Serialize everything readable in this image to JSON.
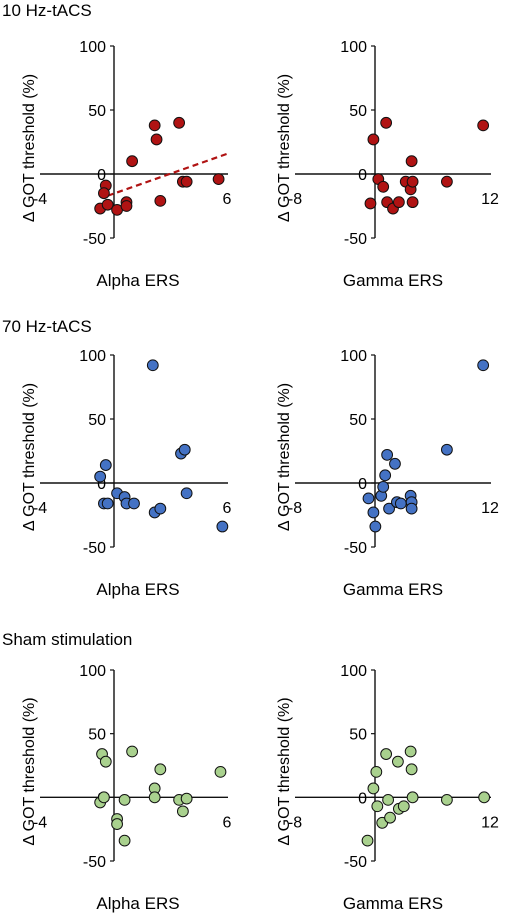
{
  "chart_data": [
    {
      "type": "scatter",
      "section": "10 Hz-tACS",
      "xlabel": "Alpha ERS",
      "ylabel": "Δ GOT threshold (%)",
      "xlim": [
        -4,
        6
      ],
      "ylim": [
        -50,
        100
      ],
      "xticks": [
        -4,
        6
      ],
      "yticks": [
        -50,
        0,
        50,
        100
      ],
      "color": "#b01313",
      "points": [
        [
          -0.8,
          -27
        ],
        [
          -0.5,
          -9
        ],
        [
          -0.6,
          -15
        ],
        [
          -0.4,
          -24
        ],
        [
          0.1,
          -28
        ],
        [
          0.6,
          -22
        ],
        [
          0.6,
          -25
        ],
        [
          0.9,
          10
        ],
        [
          2.1,
          38
        ],
        [
          2.2,
          27
        ],
        [
          2.4,
          -21
        ],
        [
          3.4,
          40
        ],
        [
          3.6,
          -6
        ],
        [
          3.8,
          -6
        ],
        [
          5.5,
          -4
        ]
      ],
      "trendline": [
        [
          -0.4,
          -17
        ],
        [
          6,
          16
        ]
      ]
    },
    {
      "type": "scatter",
      "section": "",
      "xlabel": "Gamma ERS",
      "ylabel": "Δ GOT threshold (%)",
      "xlim": [
        -8,
        12
      ],
      "ylim": [
        -50,
        100
      ],
      "xticks": [
        -8,
        12
      ],
      "yticks": [
        -50,
        0,
        50,
        100
      ],
      "color": "#b01313",
      "points": [
        [
          -0.3,
          -23
        ],
        [
          0,
          27
        ],
        [
          0.5,
          -4
        ],
        [
          1,
          -10
        ],
        [
          1.3,
          40
        ],
        [
          1.4,
          -22
        ],
        [
          2,
          -27
        ],
        [
          2.6,
          -22
        ],
        [
          3.3,
          -6
        ],
        [
          3.8,
          -12
        ],
        [
          3.9,
          10
        ],
        [
          4,
          -6
        ],
        [
          4,
          -22
        ],
        [
          7.5,
          -6
        ],
        [
          11.2,
          38
        ]
      ]
    },
    {
      "type": "scatter",
      "section": "70 Hz-tACS",
      "xlabel": "Alpha ERS",
      "ylabel": "Δ GOT threshold (%)",
      "xlim": [
        -4,
        6
      ],
      "ylim": [
        -50,
        100
      ],
      "xticks": [
        -4,
        6
      ],
      "yticks": [
        -50,
        0,
        50,
        100
      ],
      "color": "#4472c4",
      "points": [
        [
          -0.8,
          5
        ],
        [
          -0.6,
          -16
        ],
        [
          -0.5,
          14
        ],
        [
          -0.4,
          -16
        ],
        [
          0.1,
          -8
        ],
        [
          0.5,
          -11
        ],
        [
          0.6,
          -16
        ],
        [
          1,
          -16
        ],
        [
          2,
          92
        ],
        [
          2.1,
          -23
        ],
        [
          2.4,
          -20
        ],
        [
          3.5,
          23
        ],
        [
          3.7,
          26
        ],
        [
          3.8,
          -8
        ],
        [
          5.7,
          -34
        ]
      ]
    },
    {
      "type": "scatter",
      "section": "",
      "xlabel": "Gamma ERS",
      "ylabel": "Δ GOT threshold (%)",
      "xlim": [
        -8,
        12
      ],
      "ylim": [
        -50,
        100
      ],
      "xticks": [
        -8,
        12
      ],
      "yticks": [
        -50,
        0,
        50,
        100
      ],
      "color": "#4472c4",
      "points": [
        [
          -0.5,
          -12
        ],
        [
          0,
          -23
        ],
        [
          0.2,
          -34
        ],
        [
          0.8,
          -10
        ],
        [
          1,
          -3
        ],
        [
          1.2,
          6
        ],
        [
          1.4,
          22
        ],
        [
          1.6,
          -20
        ],
        [
          2.2,
          15
        ],
        [
          2.4,
          -15
        ],
        [
          2.8,
          -16
        ],
        [
          3.8,
          -10
        ],
        [
          3.9,
          -15
        ],
        [
          3.9,
          -20
        ],
        [
          7.5,
          26
        ],
        [
          11.2,
          92
        ]
      ]
    },
    {
      "type": "scatter",
      "section": "Sham stimulation",
      "xlabel": "Alpha ERS",
      "ylabel": "Δ GOT threshold (%)",
      "xlim": [
        -4,
        6
      ],
      "ylim": [
        -50,
        100
      ],
      "xticks": [
        -4,
        6
      ],
      "yticks": [
        -50,
        0,
        50,
        100
      ],
      "color": "#a9d18e",
      "points": [
        [
          -0.8,
          -4
        ],
        [
          -0.7,
          34
        ],
        [
          -0.6,
          0
        ],
        [
          -0.5,
          28
        ],
        [
          0.1,
          -17
        ],
        [
          0.1,
          -21
        ],
        [
          0.5,
          -34
        ],
        [
          0.5,
          -2
        ],
        [
          0.9,
          36
        ],
        [
          2.1,
          7
        ],
        [
          2.1,
          0
        ],
        [
          2.4,
          22
        ],
        [
          3.4,
          -2
        ],
        [
          3.6,
          -11
        ],
        [
          3.8,
          -1
        ],
        [
          5.6,
          20
        ]
      ]
    },
    {
      "type": "scatter",
      "section": "",
      "xlabel": "Gamma ERS",
      "ylabel": "Δ GOT threshold (%)",
      "xlim": [
        -8,
        12
      ],
      "ylim": [
        -50,
        100
      ],
      "xticks": [
        -8,
        12
      ],
      "yticks": [
        -50,
        0,
        50,
        100
      ],
      "color": "#a9d18e",
      "points": [
        [
          -0.6,
          -34
        ],
        [
          0,
          7
        ],
        [
          0.4,
          -7
        ],
        [
          0.3,
          20
        ],
        [
          0.9,
          -20
        ],
        [
          1.3,
          34
        ],
        [
          1.5,
          -2
        ],
        [
          1.7,
          -16
        ],
        [
          2.5,
          28
        ],
        [
          2.6,
          -9
        ],
        [
          3.1,
          -7
        ],
        [
          3.8,
          36
        ],
        [
          3.9,
          22
        ],
        [
          4,
          0
        ],
        [
          7.5,
          -2
        ],
        [
          11.3,
          0
        ]
      ]
    }
  ]
}
